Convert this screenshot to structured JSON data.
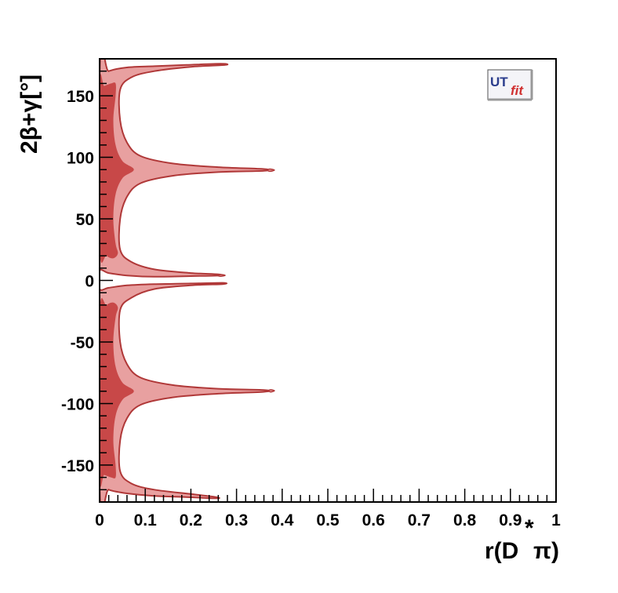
{
  "chart_data": {
    "type": "contour",
    "xlabel": "r(D",
    "xlabel_sup": "*",
    "xlabel_tail": "π)",
    "ylabel": "2β+γ[°]",
    "xlim": [
      0,
      1
    ],
    "ylim": [
      -180,
      180
    ],
    "x_ticks": [
      {
        "value": 0,
        "label": "0"
      },
      {
        "value": 0.1,
        "label": "0.1"
      },
      {
        "value": 0.2,
        "label": "0.2"
      },
      {
        "value": 0.3,
        "label": "0.3"
      },
      {
        "value": 0.4,
        "label": "0.4"
      },
      {
        "value": 0.5,
        "label": "0.5"
      },
      {
        "value": 0.6,
        "label": "0.6"
      },
      {
        "value": 0.7,
        "label": "0.7"
      },
      {
        "value": 0.8,
        "label": "0.8"
      },
      {
        "value": 0.9,
        "label": "0.9"
      },
      {
        "value": 1,
        "label": "1"
      }
    ],
    "y_ticks": [
      {
        "value": 150,
        "label": "150"
      },
      {
        "value": 100,
        "label": "100"
      },
      {
        "value": 50,
        "label": "50"
      },
      {
        "value": 0,
        "label": "0"
      },
      {
        "value": -50,
        "label": "-50"
      },
      {
        "value": -100,
        "label": "-100"
      },
      {
        "value": -150,
        "label": "-150"
      }
    ],
    "colors": {
      "outer": "#e8a0a0",
      "inner": "#c84848",
      "edge": "#b03838"
    },
    "outer_region": [
      [
        0,
        165
      ],
      [
        0.02,
        170
      ],
      [
        0.06,
        173
      ],
      [
        0.12,
        174
      ],
      [
        0.19,
        175
      ],
      [
        0.265,
        176
      ],
      [
        0.275,
        175
      ],
      [
        0.2,
        173.5
      ],
      [
        0.12,
        170
      ],
      [
        0.07,
        165
      ],
      [
        0.045,
        155
      ],
      [
        0.045,
        130
      ],
      [
        0.06,
        112
      ],
      [
        0.09,
        101
      ],
      [
        0.16,
        95
      ],
      [
        0.26,
        92
      ],
      [
        0.36,
        90.5
      ],
      [
        0.36,
        89
      ],
      [
        0.26,
        88
      ],
      [
        0.16,
        85
      ],
      [
        0.09,
        79
      ],
      [
        0.06,
        68
      ],
      [
        0.045,
        50
      ],
      [
        0.045,
        25
      ],
      [
        0.07,
        15
      ],
      [
        0.12,
        9
      ],
      [
        0.2,
        6
      ],
      [
        0.26,
        5
      ],
      [
        0.26,
        4
      ],
      [
        0.2,
        3.5
      ],
      [
        0.12,
        3
      ],
      [
        0.06,
        4
      ],
      [
        0.02,
        6
      ],
      [
        0,
        8
      ],
      [
        0,
        -7
      ],
      [
        0.02,
        -6
      ],
      [
        0.06,
        -4
      ],
      [
        0.12,
        -3
      ],
      [
        0.2,
        -2.5
      ],
      [
        0.27,
        -2
      ],
      [
        0.27,
        -3
      ],
      [
        0.2,
        -4
      ],
      [
        0.12,
        -7
      ],
      [
        0.07,
        -14
      ],
      [
        0.045,
        -24
      ],
      [
        0.045,
        -50
      ],
      [
        0.06,
        -68
      ],
      [
        0.09,
        -79
      ],
      [
        0.16,
        -85
      ],
      [
        0.26,
        -88
      ],
      [
        0.36,
        -89
      ],
      [
        0.36,
        -90.5
      ],
      [
        0.26,
        -92
      ],
      [
        0.16,
        -95
      ],
      [
        0.09,
        -101
      ],
      [
        0.06,
        -112
      ],
      [
        0.045,
        -130
      ],
      [
        0.045,
        -155
      ],
      [
        0.07,
        -165
      ],
      [
        0.12,
        -170
      ],
      [
        0.2,
        -173.5
      ],
      [
        0.255,
        -176
      ],
      [
        0.255,
        -177
      ],
      [
        0.19,
        -176
      ],
      [
        0.12,
        -175
      ],
      [
        0.06,
        -173
      ],
      [
        0.02,
        -170
      ],
      [
        0,
        -165
      ]
    ],
    "inner_regions": [
      [
        [
          0,
          158
        ],
        [
          0.01,
          158
        ],
        [
          0.025,
          160
        ],
        [
          0.035,
          160
        ],
        [
          0.035,
          150
        ],
        [
          0.03,
          130
        ],
        [
          0.035,
          110
        ],
        [
          0.05,
          97
        ],
        [
          0.075,
          90
        ],
        [
          0.05,
          83
        ],
        [
          0.035,
          70
        ],
        [
          0.03,
          50
        ],
        [
          0.035,
          30
        ],
        [
          0.04,
          22
        ],
        [
          0.03,
          18
        ],
        [
          0.015,
          20
        ],
        [
          0,
          26
        ]
      ],
      [
        [
          0,
          -26
        ],
        [
          0.015,
          -20
        ],
        [
          0.03,
          -18
        ],
        [
          0.04,
          -22
        ],
        [
          0.035,
          -30
        ],
        [
          0.03,
          -50
        ],
        [
          0.035,
          -70
        ],
        [
          0.05,
          -83
        ],
        [
          0.075,
          -90
        ],
        [
          0.05,
          -97
        ],
        [
          0.035,
          -110
        ],
        [
          0.03,
          -130
        ],
        [
          0.035,
          -150
        ],
        [
          0.035,
          -160
        ],
        [
          0.025,
          -160
        ],
        [
          0.01,
          -158
        ],
        [
          0,
          -158
        ]
      ]
    ],
    "islands": [
      [
        [
          0.373,
          90.5
        ],
        [
          0.383,
          89.6
        ],
        [
          0.373,
          88.6
        ],
        [
          0.368,
          89.6
        ]
      ],
      [
        [
          0.375,
          -88.8
        ],
        [
          0.383,
          -89.6
        ],
        [
          0.375,
          -90.6
        ],
        [
          0.37,
          -89.6
        ]
      ],
      [
        [
          0.265,
          4.8
        ],
        [
          0.275,
          4.1
        ],
        [
          0.265,
          3.4
        ],
        [
          0.258,
          4.1
        ]
      ]
    ]
  },
  "logo": {
    "ut": "UT",
    "fit": "fit"
  }
}
